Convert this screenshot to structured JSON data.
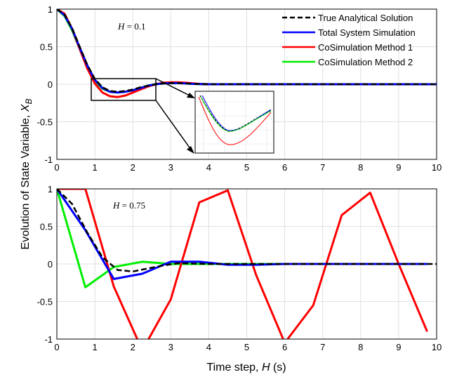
{
  "chart_data": [
    {
      "type": "line",
      "panel": "top",
      "annotation": "H = 0.1",
      "xlim": [
        0,
        10
      ],
      "ylim": [
        -1,
        1
      ],
      "xticks": [
        0,
        1,
        2,
        3,
        4,
        5,
        6,
        7,
        8,
        9,
        10
      ],
      "yticks": [
        1,
        0.5,
        0,
        -0.5,
        -1
      ],
      "ytick_labels": [
        "1",
        "0.5",
        "0",
        "-0.5",
        "-1"
      ],
      "grid": true,
      "legend_position": "top-right",
      "series": [
        {
          "name": "True Analytical Solution",
          "color": "#000000",
          "style": "dashed",
          "x": [
            0,
            0.2,
            0.4,
            0.6,
            0.8,
            1.0,
            1.2,
            1.4,
            1.6,
            1.8,
            2.0,
            2.2,
            2.4,
            2.6,
            2.8,
            3.0,
            3.2,
            3.4,
            3.6,
            3.8,
            4.0,
            4.5,
            5,
            6,
            7,
            8,
            9,
            10
          ],
          "y": [
            1,
            0.93,
            0.75,
            0.5,
            0.26,
            0.07,
            -0.04,
            -0.09,
            -0.1,
            -0.09,
            -0.07,
            -0.04,
            -0.02,
            0.0,
            0.01,
            0.015,
            0.015,
            0.01,
            0.005,
            0.002,
            0,
            0,
            0,
            0,
            0,
            0,
            0,
            0
          ]
        },
        {
          "name": "Total System Simulation",
          "color": "#0000ff",
          "style": "solid",
          "x": [
            0,
            0.2,
            0.4,
            0.6,
            0.8,
            1.0,
            1.2,
            1.4,
            1.6,
            1.8,
            2.0,
            2.2,
            2.4,
            2.6,
            2.8,
            3.0,
            3.2,
            3.4,
            3.6,
            3.8,
            4.0,
            4.5,
            5,
            6,
            7,
            8,
            9,
            10
          ],
          "y": [
            1,
            0.92,
            0.74,
            0.49,
            0.25,
            0.06,
            -0.05,
            -0.1,
            -0.11,
            -0.1,
            -0.08,
            -0.05,
            -0.02,
            0.0,
            0.01,
            0.015,
            0.015,
            0.01,
            0.005,
            0.002,
            0,
            0,
            0,
            0,
            0,
            0,
            0,
            0
          ]
        },
        {
          "name": "CoSimulation Method 1",
          "color": "#ff0000",
          "style": "solid",
          "x": [
            0,
            0.2,
            0.4,
            0.6,
            0.8,
            1.0,
            1.2,
            1.4,
            1.6,
            1.8,
            2.0,
            2.2,
            2.4,
            2.6,
            2.8,
            3.0,
            3.2,
            3.4,
            3.6,
            3.8,
            4.0,
            4.5,
            5,
            6,
            7,
            8,
            9,
            10
          ],
          "y": [
            1,
            0.94,
            0.74,
            0.47,
            0.21,
            0.01,
            -0.11,
            -0.16,
            -0.17,
            -0.15,
            -0.11,
            -0.07,
            -0.03,
            0.0,
            0.02,
            0.025,
            0.025,
            0.02,
            0.01,
            0.003,
            0,
            0,
            0,
            0,
            0,
            0,
            0,
            0
          ]
        },
        {
          "name": "CoSimulation Method 2",
          "color": "#00ee00",
          "style": "solid",
          "x": [
            0,
            0.2,
            0.4,
            0.6,
            0.8,
            1.0,
            1.2,
            1.4,
            1.6,
            1.8,
            2.0,
            2.2,
            2.4,
            2.6,
            2.8,
            3.0,
            3.2,
            3.4,
            3.6,
            3.8,
            4.0,
            4.5,
            5,
            6,
            7,
            8,
            9,
            10
          ],
          "y": [
            1,
            0.91,
            0.72,
            0.47,
            0.24,
            0.05,
            -0.06,
            -0.1,
            -0.11,
            -0.1,
            -0.08,
            -0.05,
            -0.02,
            0.0,
            0.01,
            0.015,
            0.015,
            0.01,
            0.005,
            0.002,
            0,
            0,
            0,
            0,
            0,
            0,
            0,
            0
          ]
        }
      ],
      "zoom_box": {
        "x": [
          0.9,
          2.6
        ],
        "y": [
          -0.22,
          0.07
        ]
      }
    },
    {
      "type": "line",
      "panel": "bottom",
      "annotation": "H = 0.75",
      "xlim": [
        0,
        10
      ],
      "ylim": [
        -1,
        1
      ],
      "xticks": [
        0,
        1,
        2,
        3,
        4,
        5,
        6,
        7,
        8,
        9,
        10
      ],
      "yticks": [
        1,
        0.5,
        0,
        -0.5,
        -1
      ],
      "ytick_labels": [
        "1",
        "0.5",
        "0",
        "-0.5",
        "-1"
      ],
      "grid": true,
      "series": [
        {
          "name": "True Analytical Solution",
          "color": "#000000",
          "style": "dashed",
          "x": [
            0,
            0.4,
            0.8,
            1.2,
            1.6,
            2.0,
            2.4,
            2.8,
            3.2,
            4,
            5,
            6,
            7,
            8,
            9,
            10
          ],
          "y": [
            1,
            0.8,
            0.42,
            0.09,
            -0.08,
            -0.1,
            -0.06,
            -0.02,
            0.01,
            0,
            0,
            0,
            0,
            0,
            0,
            0
          ]
        },
        {
          "name": "Total System Simulation",
          "color": "#0000ff",
          "style": "solid",
          "x": [
            0,
            0.75,
            1.5,
            2.25,
            3.0,
            3.75,
            4.5,
            5.25,
            6.0,
            6.75,
            7.5,
            8.25,
            9.0,
            9.75
          ],
          "y": [
            1,
            0.45,
            -0.2,
            -0.13,
            0.03,
            0.03,
            -0.01,
            -0.01,
            0,
            0,
            0,
            0,
            0,
            0
          ]
        },
        {
          "name": "CoSimulation Method 1",
          "color": "#ff0000",
          "style": "solid",
          "x": [
            0,
            0.75,
            1.5,
            2.25,
            3.0,
            3.75,
            4.5,
            5.25,
            6.0,
            6.75,
            7.5,
            8.25,
            9.0,
            9.75
          ],
          "y": [
            1,
            1,
            -0.3,
            -1.15,
            -0.47,
            0.82,
            0.98,
            -0.15,
            -1.05,
            -0.55,
            0.65,
            0.95,
            0.0,
            -0.9
          ]
        },
        {
          "name": "CoSimulation Method 2",
          "color": "#00ee00",
          "style": "solid",
          "x": [
            0,
            0.75,
            1.5,
            2.25,
            3.0,
            3.75,
            4.5,
            5.25,
            6.0,
            6.75,
            7.5,
            8.25,
            9.0,
            9.75
          ],
          "y": [
            1,
            -0.31,
            -0.04,
            0.03,
            0.0,
            0.0,
            0.0,
            0.0,
            0,
            0,
            0,
            0,
            0,
            0
          ]
        }
      ]
    }
  ],
  "ylabel": "Evolution of State Variable, X_B",
  "xlabel": "Time  step, H (s)",
  "legend": [
    {
      "label": "True Analytical Solution",
      "color": "#000000",
      "style": "dashed"
    },
    {
      "label": "Total System Simulation",
      "color": "#0000ff",
      "style": "solid"
    },
    {
      "label": "CoSimulation Method 1",
      "color": "#ff0000",
      "style": "solid"
    },
    {
      "label": "CoSimulation Method 2",
      "color": "#00ee00",
      "style": "solid"
    }
  ],
  "xlabel_parts": {
    "prefix": "Time  step, ",
    "var": "H",
    "suffix": " (s)"
  },
  "ylabel_parts": {
    "prefix": "Evolution of State Variable, ",
    "var": "X",
    "sub": "B"
  },
  "annotations": [
    {
      "var": "H",
      "eq": " = 0.1"
    },
    {
      "var": "H",
      "eq": " = 0.75"
    }
  ]
}
